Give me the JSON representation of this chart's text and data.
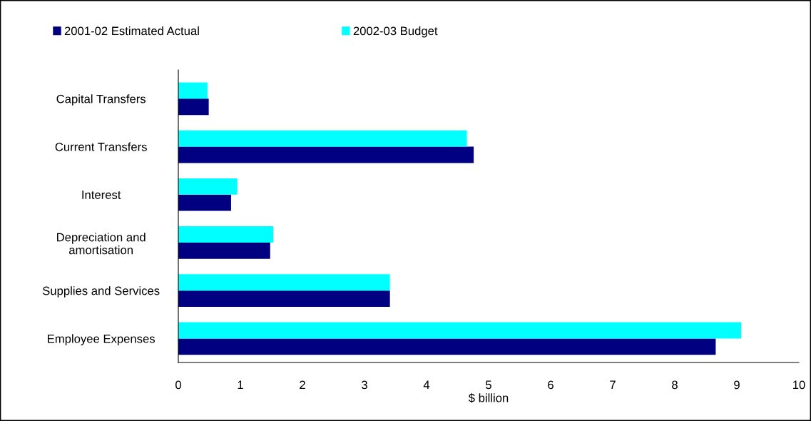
{
  "chart_data": {
    "type": "bar",
    "orientation": "horizontal",
    "xlabel": "$ billion",
    "categories": [
      "Capital Transfers",
      "Current Transfers",
      "Interest",
      "Depreciation and\namortisation",
      "Supplies and Services",
      "Employee Expenses"
    ],
    "series": [
      {
        "name": "2001-02 Estimated Actual",
        "color": "#000080",
        "values": [
          0.49,
          4.76,
          0.85,
          1.48,
          3.41,
          8.66
        ]
      },
      {
        "name": "2002-03 Budget",
        "color": "#00ffff",
        "values": [
          0.47,
          4.65,
          0.95,
          1.53,
          3.41,
          9.07
        ]
      }
    ],
    "xlim": [
      0,
      10
    ],
    "xticks": [
      0,
      1,
      2,
      3,
      4,
      5,
      6,
      7,
      8,
      9,
      10
    ],
    "grid": false,
    "legend": "top left"
  }
}
